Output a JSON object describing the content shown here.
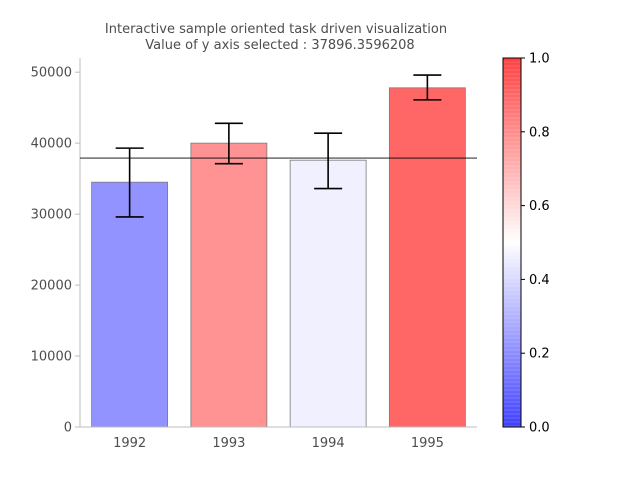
{
  "chart_data": {
    "type": "bar",
    "title": "Interactive sample oriented task driven visualization",
    "subtitle_prefix": "Value of y axis selected : ",
    "selected_y": 37896.3596208,
    "subtitle": "Value of y axis selected : 37896.3596208",
    "categories": [
      "1992",
      "1993",
      "1994",
      "1995"
    ],
    "values": [
      34500,
      40000,
      37600,
      47800
    ],
    "error_low": [
      29600,
      37100,
      33600,
      46100
    ],
    "error_high": [
      39300,
      42800,
      41400,
      49600
    ],
    "bar_colors": [
      "#9393ff",
      "#ff9393",
      "#f0f0ff",
      "#ff6666"
    ],
    "ylim": [
      0,
      52000
    ],
    "yticks": [
      0,
      10000,
      20000,
      30000,
      40000,
      50000
    ],
    "ytick_labels": [
      "0",
      "10000",
      "20000",
      "30000",
      "40000",
      "50000"
    ],
    "xlabel": "",
    "ylabel": "",
    "grid": false,
    "colorbar": {
      "range": [
        0.0,
        1.0
      ],
      "ticks": [
        "0.0",
        "0.2",
        "0.4",
        "0.6",
        "0.8",
        "1.0"
      ],
      "low_color": "#0000ff",
      "mid_color": "#ffffff",
      "high_color": "#ff0000"
    }
  }
}
